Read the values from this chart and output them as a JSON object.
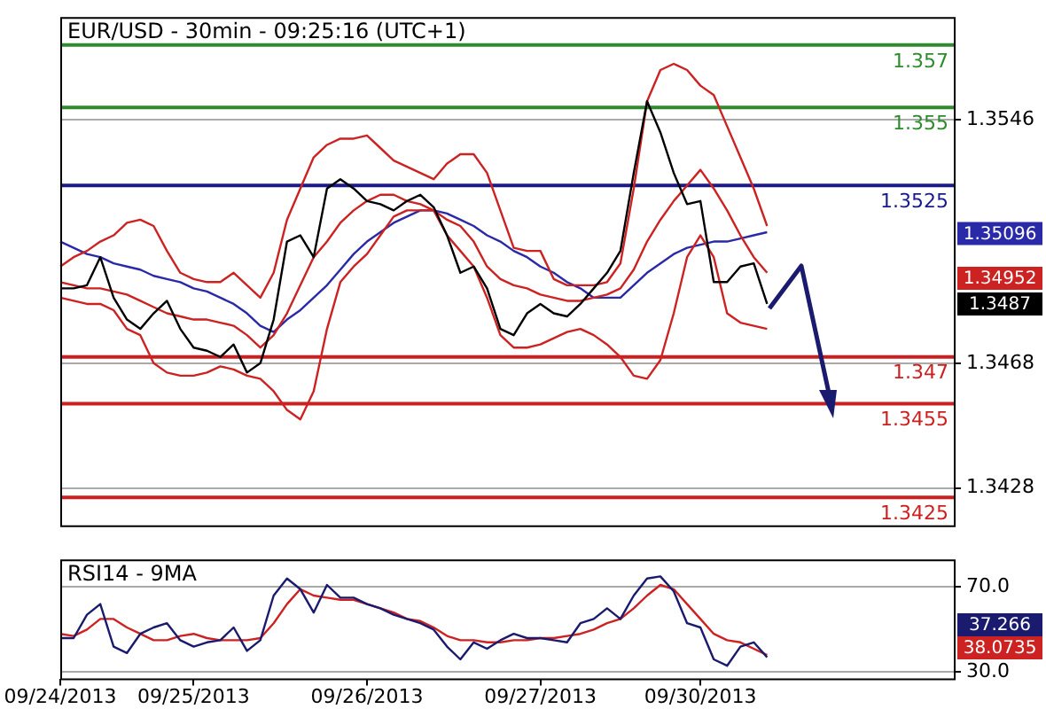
{
  "chart_data": [
    {
      "type": "line",
      "title": "EUR/USD - 30min - 09:25:16 (UTC+1)",
      "categories": [
        null,
        null,
        null,
        null,
        null,
        null,
        null,
        null,
        null,
        null,
        null,
        null,
        null,
        null,
        null,
        null,
        null,
        null,
        null,
        null,
        null,
        null,
        null,
        null,
        null,
        null,
        null,
        null,
        null,
        null,
        null,
        null,
        null,
        null,
        null,
        null,
        null,
        null,
        null,
        null,
        null,
        null,
        null,
        null,
        null,
        null,
        null,
        null,
        null,
        null,
        null,
        null,
        null,
        null,
        null,
        null,
        null,
        null,
        null,
        null,
        null,
        null,
        null,
        null,
        null,
        null,
        null,
        null
      ],
      "series": [
        {
          "color": "#000000",
          "values": [
            1.3492,
            1.3492,
            1.3493,
            1.3502,
            1.3489,
            1.3482,
            1.3479,
            1.3484,
            1.3488,
            1.3479,
            1.3473,
            1.3472,
            1.347,
            1.3474,
            1.3465,
            1.3468,
            1.3482,
            1.3507,
            1.3509,
            1.3502,
            1.3524,
            1.3527,
            1.3524,
            1.352,
            1.3519,
            1.3517,
            1.352,
            1.3522,
            1.3518,
            1.3509,
            1.3497,
            1.3499,
            1.3492,
            1.3479,
            1.3477,
            1.3484,
            1.3487,
            1.3484,
            1.3483,
            1.3487,
            1.3492,
            1.3497,
            1.3504,
            1.3529,
            1.3552,
            1.3542,
            1.3529,
            1.3519,
            1.352,
            1.3494,
            1.3494,
            1.3499,
            1.35,
            1.3487,
            null,
            null,
            null,
            null,
            null,
            null,
            null,
            null,
            null,
            null,
            null,
            null,
            null,
            null
          ]
        },
        {
          "color": "#cc2222",
          "values": [
            1.3499,
            1.3502,
            1.3504,
            1.3507,
            1.3509,
            1.3513,
            1.3514,
            1.3512,
            1.3504,
            1.3497,
            1.3495,
            1.3494,
            1.3494,
            1.3497,
            1.3493,
            1.3489,
            1.3497,
            1.3514,
            1.3524,
            1.3534,
            1.3538,
            1.354,
            1.354,
            1.3541,
            1.3537,
            1.3533,
            1.3531,
            1.3529,
            1.3527,
            1.3532,
            1.3535,
            1.3535,
            1.3529,
            1.3517,
            1.3505,
            1.3504,
            1.3504,
            1.3495,
            1.3493,
            1.3493,
            1.3493,
            1.3494,
            1.35,
            1.3524,
            1.3552,
            1.3562,
            1.3564,
            1.3562,
            1.3557,
            1.3554,
            1.3544,
            1.3534,
            1.3524,
            1.3512,
            null,
            null,
            null,
            null,
            null,
            null,
            null,
            null,
            null,
            null,
            null,
            null,
            null,
            null
          ]
        },
        {
          "color": "#cc2222",
          "values": [
            1.3494,
            1.3493,
            1.3492,
            1.3492,
            1.3491,
            1.349,
            1.3488,
            1.3486,
            1.3484,
            1.3483,
            1.3482,
            1.3482,
            1.3481,
            1.348,
            1.3477,
            1.3473,
            1.3477,
            1.3484,
            1.3493,
            1.3502,
            1.3507,
            1.3513,
            1.3517,
            1.352,
            1.3522,
            1.3522,
            1.352,
            1.3519,
            1.3517,
            1.3514,
            1.3512,
            1.3507,
            1.3499,
            1.3495,
            1.3493,
            1.3492,
            1.349,
            1.3489,
            1.3488,
            1.3488,
            1.3489,
            1.349,
            1.3492,
            1.3498,
            1.3507,
            1.3514,
            1.352,
            1.3525,
            1.353,
            1.3524,
            1.3517,
            1.3509,
            1.3502,
            1.3497,
            null,
            null,
            null,
            null,
            null,
            null,
            null,
            null,
            null,
            null,
            null,
            null,
            null,
            null
          ]
        },
        {
          "color": "#cc2222",
          "values": [
            1.3489,
            1.3488,
            1.3487,
            1.3487,
            1.3485,
            1.3479,
            1.3477,
            1.3468,
            1.3465,
            1.3464,
            1.3464,
            1.3465,
            1.3467,
            1.3466,
            1.3464,
            1.3463,
            1.3459,
            1.3453,
            1.345,
            1.3459,
            1.3479,
            1.3494,
            1.3499,
            1.3503,
            1.3509,
            1.3515,
            1.3517,
            1.3517,
            1.3517,
            1.3509,
            1.3504,
            1.3499,
            1.3489,
            1.3477,
            1.3473,
            1.3473,
            1.3474,
            1.3476,
            1.3478,
            1.3479,
            1.3477,
            1.3474,
            1.347,
            1.3464,
            1.3463,
            1.3469,
            1.3484,
            1.3502,
            1.3509,
            1.3502,
            1.3484,
            1.3481,
            1.348,
            1.3479,
            null,
            null,
            null,
            null,
            null,
            null,
            null,
            null,
            null,
            null,
            null,
            null,
            null,
            null
          ]
        },
        {
          "color": "#2a2aa8",
          "values": [
            1.3507,
            1.3505,
            1.3503,
            1.3502,
            1.35,
            1.3499,
            1.3498,
            1.3496,
            1.3495,
            1.3494,
            1.3492,
            1.3491,
            1.3489,
            1.3487,
            1.3484,
            1.348,
            1.3478,
            1.3482,
            1.3485,
            1.3489,
            1.3493,
            1.3498,
            1.3503,
            1.3507,
            1.351,
            1.3513,
            1.3515,
            1.3517,
            1.3517,
            1.3516,
            1.3514,
            1.3512,
            1.3509,
            1.3507,
            1.3504,
            1.3502,
            1.3499,
            1.3497,
            1.3494,
            1.3492,
            1.3489,
            1.3489,
            1.3489,
            1.3493,
            1.3497,
            1.35,
            1.3503,
            1.3505,
            1.3506,
            1.3507,
            1.3507,
            1.3508,
            1.3509,
            1.351,
            null,
            null,
            null,
            null,
            null,
            null,
            null,
            null,
            null,
            null,
            null,
            null,
            null,
            null
          ]
        }
      ],
      "ylim": [
        1.3416,
        1.3579
      ],
      "yticks": [
        1.3546,
        1.3468,
        1.3428
      ],
      "grid": "y",
      "marker": "none",
      "tick_labels": "y",
      "ref_lines": [
        {
          "axis": "y",
          "value": 1.357,
          "label": "1.357",
          "color": "#2e8b2e"
        },
        {
          "axis": "y",
          "value": 1.355,
          "label": "1.355",
          "color": "#2e8b2e"
        },
        {
          "axis": "y",
          "value": 1.3525,
          "label": "1.3525",
          "color": "#1a1a8c"
        },
        {
          "axis": "y",
          "value": 1.347,
          "label": "1.347",
          "color": "#cc1f1f"
        },
        {
          "axis": "y",
          "value": 1.3455,
          "label": "1.3455",
          "color": "#cc1f1f"
        },
        {
          "axis": "y",
          "value": 1.3425,
          "label": "1.3425",
          "color": "#cc1f1f"
        }
      ],
      "annotations": [
        "1.35096",
        "1.34952",
        "1.3487"
      ]
    },
    {
      "type": "line",
      "title": "RSI14 - 9MA",
      "categories": [
        "09/24/2013",
        null,
        null,
        null,
        null,
        null,
        null,
        null,
        null,
        null,
        "09/25/2013",
        null,
        null,
        null,
        null,
        null,
        null,
        null,
        null,
        null,
        null,
        null,
        null,
        "09/26/2013",
        null,
        null,
        null,
        null,
        null,
        null,
        null,
        null,
        null,
        null,
        null,
        null,
        "09/27/2013",
        null,
        null,
        null,
        null,
        null,
        null,
        null,
        null,
        null,
        null,
        null,
        "09/30/2013",
        null,
        null,
        null,
        null,
        null,
        null,
        null,
        null,
        null,
        null,
        null,
        null,
        null,
        null,
        null,
        null,
        null,
        null,
        null
      ],
      "series": [
        {
          "color": "#1a1a6e",
          "values": [
            46,
            46,
            57,
            62,
            42,
            39,
            48,
            51,
            53,
            45,
            42,
            44,
            45,
            51,
            40,
            45,
            66,
            74,
            69,
            58,
            71,
            65,
            65,
            62,
            60,
            57,
            55,
            53,
            50,
            42,
            36,
            44,
            41,
            45,
            48,
            46,
            46,
            45,
            44,
            53,
            55,
            60,
            55,
            66,
            74,
            75,
            68,
            53,
            51,
            36,
            33,
            42,
            44,
            37,
            null,
            null,
            null,
            null,
            null,
            null,
            null,
            null,
            null,
            null,
            null,
            null,
            null,
            null
          ]
        },
        {
          "color": "#cc2222",
          "values": [
            48,
            47,
            50,
            55,
            55,
            51,
            48,
            45,
            45,
            47,
            48,
            46,
            45,
            45,
            45,
            46,
            53,
            62,
            69,
            66,
            65,
            64,
            64,
            62,
            60,
            58,
            55,
            54,
            51,
            47,
            45,
            45,
            44,
            44,
            45,
            45,
            46,
            46,
            47,
            48,
            50,
            53,
            55,
            60,
            66,
            71,
            69,
            62,
            55,
            48,
            45,
            44,
            41,
            38,
            null,
            null,
            null,
            null,
            null,
            null,
            null,
            null,
            null,
            null,
            null,
            null,
            null,
            null
          ]
        }
      ],
      "ylim": [
        27,
        83
      ],
      "yticks": [
        {
          "value": 70,
          "label": "70.0"
        },
        {
          "value": 30,
          "label": "30.0"
        }
      ],
      "grid": "y",
      "marker": "none",
      "annotations": [
        "38.0735",
        "37.266"
      ]
    }
  ]
}
